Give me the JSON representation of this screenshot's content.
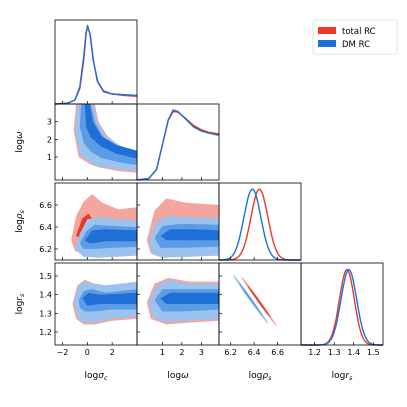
{
  "chart_data": {
    "type": "corner",
    "legend": {
      "placement": "top-right",
      "entries": [
        {
          "name": "total RC",
          "color": "#e8392b"
        },
        {
          "name": "DM RC",
          "color": "#1f6fd6"
        }
      ]
    },
    "parameters": [
      {
        "name": "σc",
        "label_base": "log",
        "label_sym": "σ",
        "label_sub": "c",
        "range": [
          -2.6,
          4.0
        ],
        "ticks": [
          -2,
          0,
          2
        ]
      },
      {
        "name": "ω",
        "label_base": "log",
        "label_sym": "ω",
        "label_sub": "",
        "range": [
          -0.3,
          3.9
        ],
        "ticks": [
          1,
          2,
          3
        ]
      },
      {
        "name": "ρs",
        "label_base": "log",
        "label_sym": "ρ",
        "label_sub": "s",
        "range": [
          6.1,
          6.8
        ],
        "ticks": [
          6.2,
          6.4,
          6.6
        ]
      },
      {
        "name": "rs",
        "label_base": "log",
        "label_sym": "r",
        "label_sub": "s",
        "range": [
          1.13,
          1.55
        ],
        "ticks": [
          1.2,
          1.3,
          1.4,
          1.5
        ]
      }
    ],
    "y_ranges": {
      "ω": [
        -0.3,
        4.0
      ],
      "ρs": [
        6.1,
        6.8
      ],
      "rs": [
        1.13,
        1.57
      ]
    },
    "y_ticks": {
      "ω": [
        1,
        2,
        3
      ],
      "ρs": [
        6.2,
        6.4,
        6.6
      ],
      "rs": [
        1.2,
        1.3,
        1.4,
        1.5
      ]
    },
    "marginals": {
      "σc": {
        "total RC": [
          [
            -2.6,
            0.0
          ],
          [
            -1.6,
            0.01
          ],
          [
            -1.0,
            0.05
          ],
          [
            -0.6,
            0.2
          ],
          [
            -0.3,
            0.55
          ],
          [
            -0.1,
            0.9
          ],
          [
            0.0,
            1.0
          ],
          [
            0.2,
            0.92
          ],
          [
            0.45,
            0.6
          ],
          [
            0.8,
            0.3
          ],
          [
            1.3,
            0.17
          ],
          [
            2.0,
            0.13
          ],
          [
            3.0,
            0.11
          ],
          [
            4.0,
            0.1
          ]
        ],
        "DM RC": [
          [
            -2.6,
            0.0
          ],
          [
            -1.6,
            0.01
          ],
          [
            -1.0,
            0.05
          ],
          [
            -0.6,
            0.22
          ],
          [
            -0.3,
            0.6
          ],
          [
            -0.1,
            0.93
          ],
          [
            0.05,
            1.0
          ],
          [
            0.25,
            0.88
          ],
          [
            0.5,
            0.55
          ],
          [
            0.85,
            0.28
          ],
          [
            1.3,
            0.16
          ],
          [
            2.0,
            0.13
          ],
          [
            3.0,
            0.12
          ],
          [
            4.0,
            0.11
          ]
        ]
      },
      "ω": {
        "total RC": [
          [
            -0.3,
            0.0
          ],
          [
            0.3,
            0.02
          ],
          [
            0.7,
            0.15
          ],
          [
            1.0,
            0.5
          ],
          [
            1.3,
            0.85
          ],
          [
            1.55,
            0.98
          ],
          [
            1.8,
            0.97
          ],
          [
            2.2,
            0.88
          ],
          [
            2.6,
            0.78
          ],
          [
            3.0,
            0.72
          ],
          [
            3.4,
            0.68
          ],
          [
            3.9,
            0.66
          ]
        ],
        "DM RC": [
          [
            -0.3,
            0.0
          ],
          [
            0.3,
            0.02
          ],
          [
            0.7,
            0.15
          ],
          [
            1.0,
            0.5
          ],
          [
            1.3,
            0.86
          ],
          [
            1.55,
            1.0
          ],
          [
            1.8,
            0.98
          ],
          [
            2.2,
            0.87
          ],
          [
            2.6,
            0.76
          ],
          [
            3.0,
            0.7
          ],
          [
            3.4,
            0.67
          ],
          [
            3.9,
            0.64
          ]
        ]
      },
      "ρs": {
        "total RC": {
          "mean": 6.445,
          "sd": 0.072
        },
        "DM RC": {
          "mean": 6.385,
          "sd": 0.072
        }
      },
      "rs": {
        "total RC": {
          "mean": 1.365,
          "sd": 0.038
        },
        "DM RC": {
          "mean": 1.375,
          "sd": 0.04
        }
      }
    }
  }
}
